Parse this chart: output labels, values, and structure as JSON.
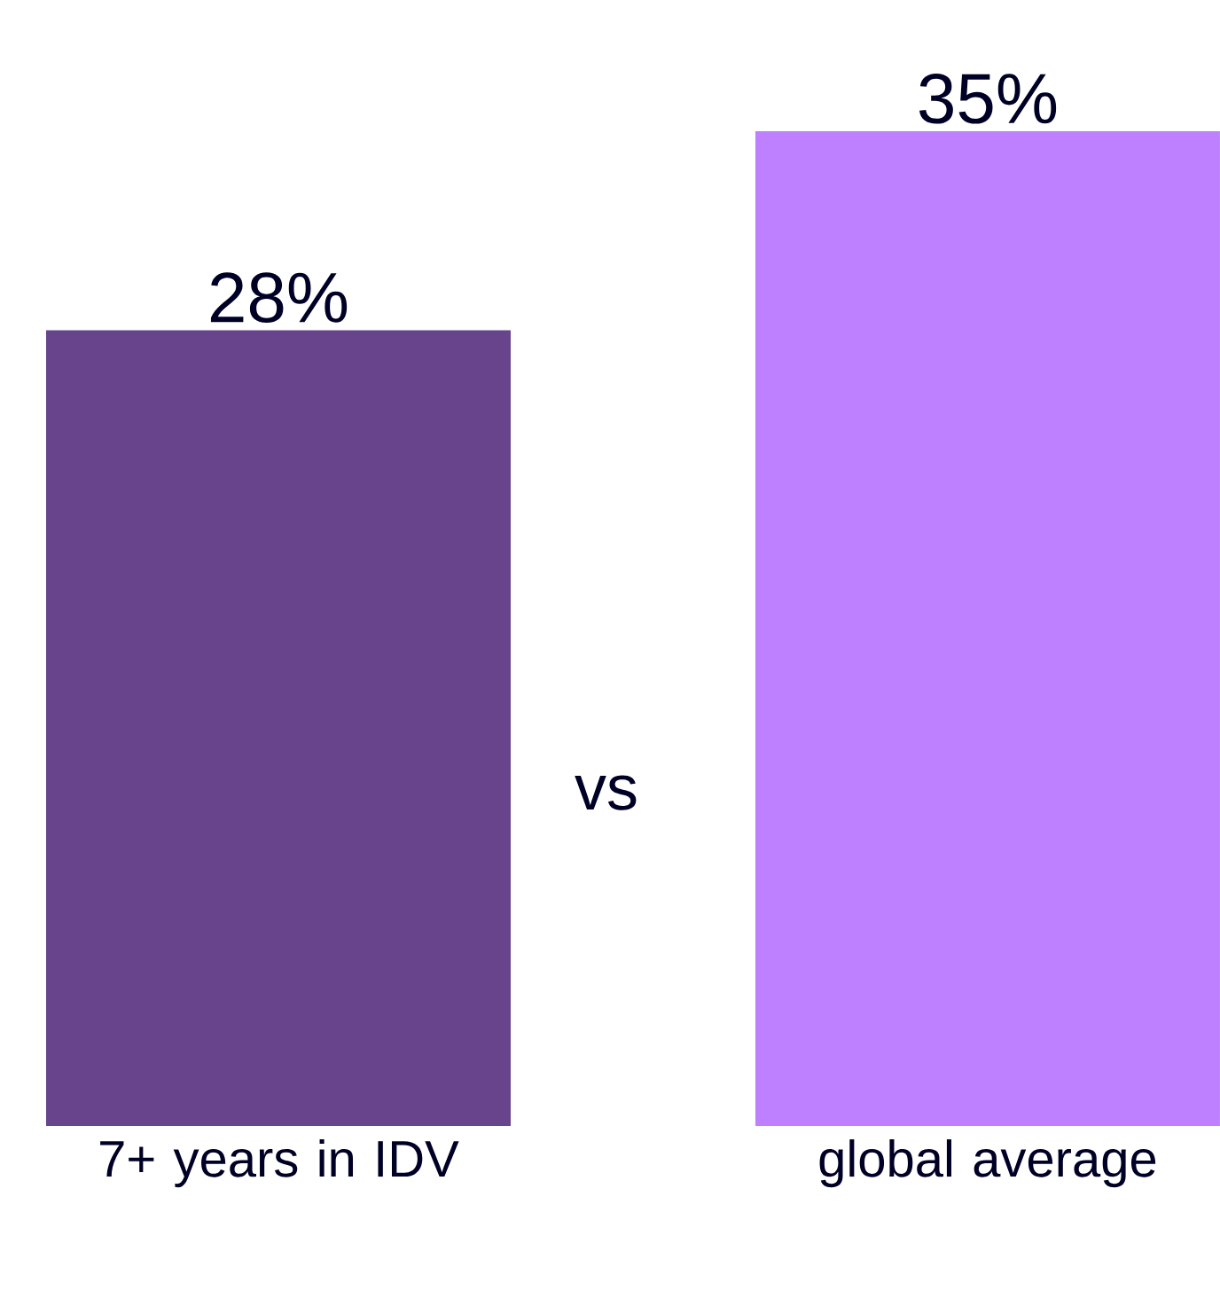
{
  "chart_data": {
    "type": "bar",
    "categories": [
      "7+ years in IDV",
      "global average"
    ],
    "values": [
      28,
      35
    ],
    "colors": [
      "#68448c",
      "#bf80ff"
    ],
    "value_labels": [
      "28%",
      "35%"
    ],
    "ylim": [
      0,
      35
    ],
    "tick_labels": "x",
    "annotations": [
      "vs"
    ]
  }
}
